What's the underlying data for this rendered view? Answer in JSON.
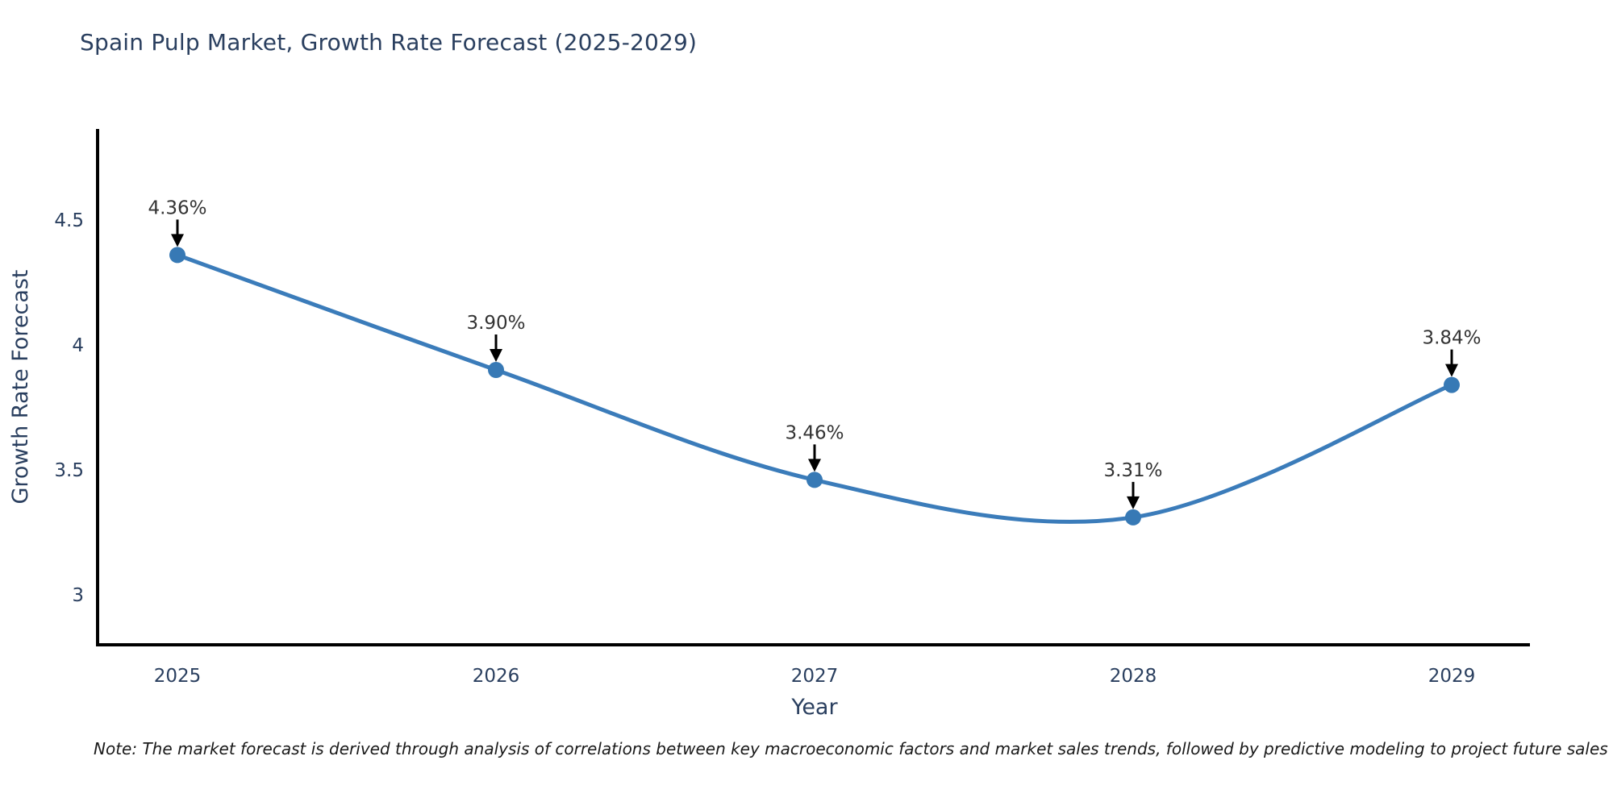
{
  "title": "Spain Pulp Market, Growth Rate Forecast (2025-2029)",
  "note": "Note: The market forecast is derived through analysis of correlations between key macroeconomic factors and market sales trends, followed by predictive modeling to project future sales",
  "chart_data": {
    "type": "line",
    "title": "Spain Pulp Market, Growth Rate Forecast (2025-2029)",
    "xlabel": "Year",
    "ylabel": "Growth Rate Forecast",
    "categories": [
      2025,
      2026,
      2027,
      2028,
      2029
    ],
    "values": [
      4.36,
      3.9,
      3.46,
      3.31,
      3.84
    ],
    "point_labels": [
      "4.36%",
      "3.90%",
      "3.46%",
      "3.31%",
      "3.84%"
    ],
    "yticks": [
      3,
      3.5,
      4,
      4.5
    ],
    "ylim": [
      2.8,
      4.86
    ],
    "xlim": [
      2024.75,
      2029.25
    ],
    "line_shape": "spline",
    "grid": false,
    "legend_position": "none",
    "colors": {
      "line": "#3b7cba",
      "marker": "#3779b5",
      "axis_line": "#000000",
      "tick_text": "#2a3f5f",
      "axis_title_text": "#2a3f5f",
      "annotation_text": "#333333",
      "arrow": "#000000",
      "background": "#ffffff"
    }
  }
}
